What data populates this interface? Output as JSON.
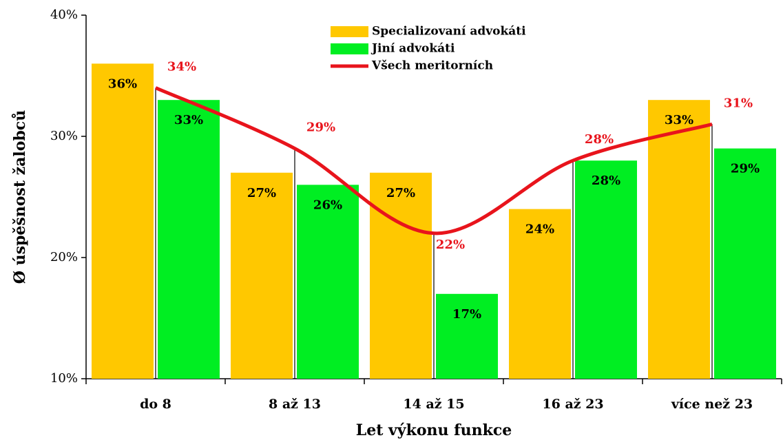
{
  "chart_data": {
    "type": "bar",
    "x_label": "Let výkonu funkce",
    "y_label": "Ø úspěšnost žalobců",
    "categories": [
      "do 8",
      "8 až 13",
      "14 až 15",
      "16 až 23",
      "více než 23"
    ],
    "series": [
      {
        "name": "Specializovaní advokáti",
        "type": "bar",
        "color": "#ffc800",
        "values": [
          36,
          27,
          27,
          24,
          33
        ],
        "value_labels": [
          "36%",
          "27%",
          "27%",
          "24%",
          "33%"
        ]
      },
      {
        "name": "Jiní advokáti",
        "type": "bar",
        "color": "#00ee22",
        "values": [
          33,
          26,
          17,
          28,
          29
        ],
        "value_labels": [
          "33%",
          "26%",
          "17%",
          "28%",
          "29%"
        ]
      },
      {
        "name": "Všech meritorních",
        "type": "line",
        "color": "#e8141c",
        "values": [
          34,
          29,
          22,
          28,
          31
        ],
        "value_labels": [
          "34%",
          "29%",
          "22%",
          "28%",
          "31%"
        ]
      }
    ],
    "ylim": [
      10,
      40
    ],
    "yticks": [
      {
        "value": 10,
        "label": "10%"
      },
      {
        "value": 20,
        "label": "20%"
      },
      {
        "value": 30,
        "label": "30%"
      },
      {
        "value": 40,
        "label": "40%"
      }
    ],
    "legend": "top"
  }
}
